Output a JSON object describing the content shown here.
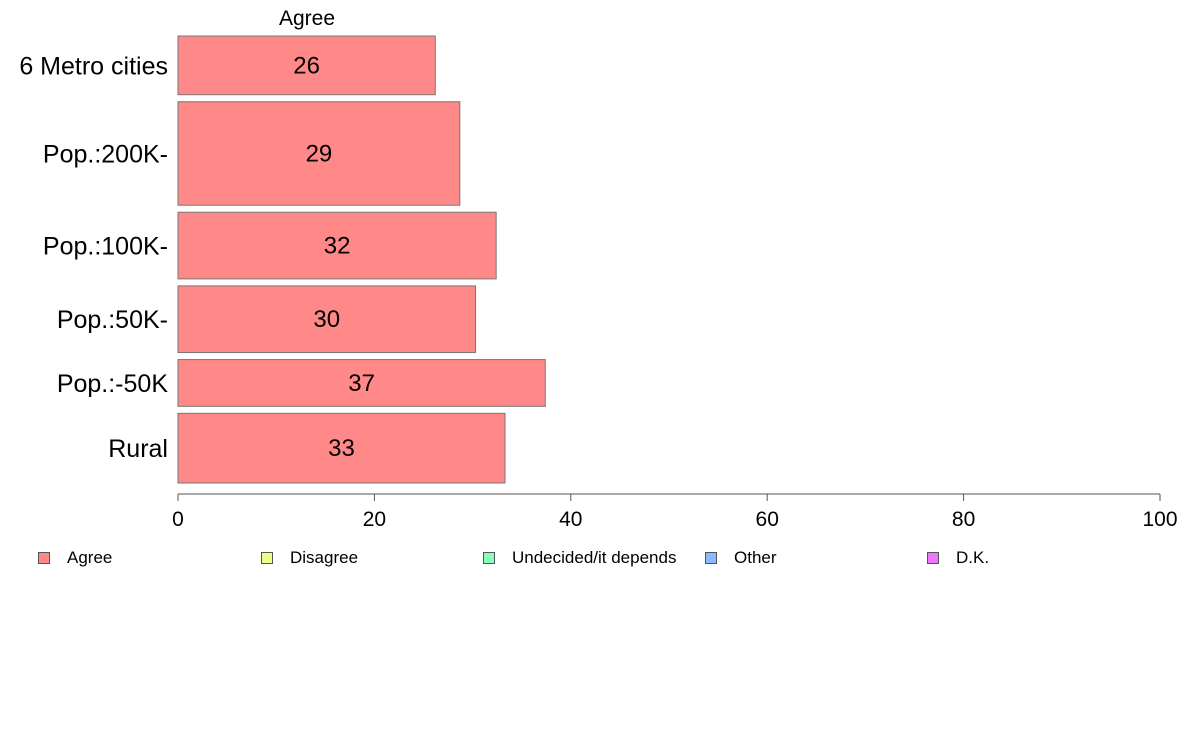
{
  "chart_data": {
    "type": "bar",
    "orientation": "horizontal",
    "title": "Agree",
    "xlabel": "",
    "ylabel": "",
    "xlim": [
      0,
      100
    ],
    "x_ticks": [
      0,
      20,
      40,
      60,
      80,
      100
    ],
    "categories": [
      "6 Metro cities",
      "Pop.:200K-",
      "Pop.:100K-",
      "Pop.:50K-",
      "Pop.:-50K",
      "Rural"
    ],
    "series": [
      {
        "name": "Agree",
        "color": "#ff8888",
        "values": [
          26.2,
          28.7,
          32.4,
          30.3,
          37.4,
          33.3
        ],
        "labels": [
          "26",
          "29",
          "32",
          "30",
          "37",
          "33"
        ]
      }
    ],
    "bar_relative_heights": [
      0.59,
      1.04,
      0.67,
      0.67,
      0.47,
      0.7
    ],
    "grid": false,
    "legend_position": "bottom",
    "legend": [
      {
        "label": "Agree",
        "color": "#ff8888"
      },
      {
        "label": "Disagree",
        "color": "#eeff88"
      },
      {
        "label": "Undecided/it depends",
        "color": "#88ffbb"
      },
      {
        "label": "Other",
        "color": "#88bbff"
      },
      {
        "label": "D.K.",
        "color": "#ee77ff"
      }
    ]
  }
}
